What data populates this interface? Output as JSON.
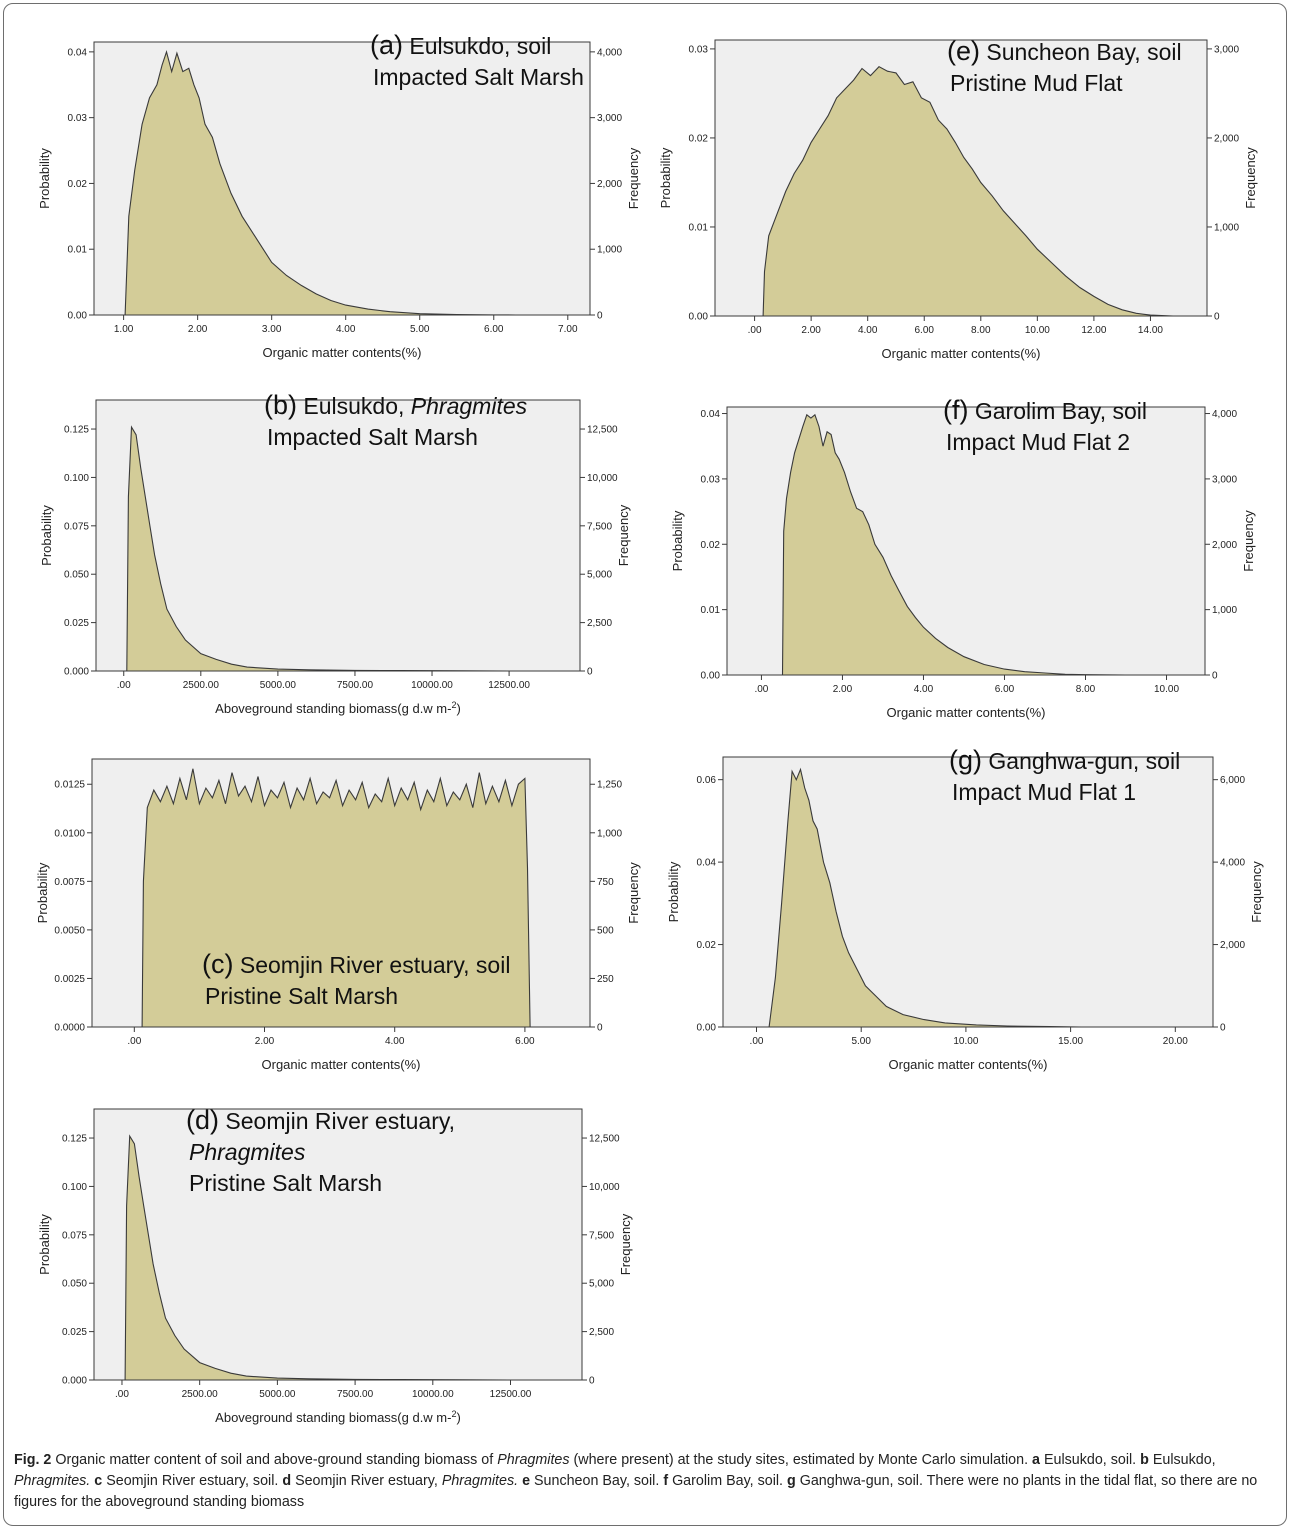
{
  "figure": {
    "caption": {
      "fig_label": "Fig. 2",
      "text": "Organic matter content of soil and above-ground standing biomass of",
      "italic_1": "Phragmites",
      "text_2": "(where present) at the study sites, estimated by Monte Carlo simulation.",
      "items": [
        {
          "letter": "a",
          "text": "Eulsukdo, soil."
        },
        {
          "letter": "b",
          "text": "Eulsukdo,",
          "italic": "Phragmites."
        },
        {
          "letter": "c",
          "text": "Seomjin River estuary, soil."
        },
        {
          "letter": "d",
          "text": "Seomjin River estuary,",
          "italic": "Phragmites."
        },
        {
          "letter": "e",
          "text": "Suncheon Bay, soil."
        },
        {
          "letter": "f",
          "text": "Garolim Bay, soil."
        },
        {
          "letter": "g",
          "text": "Ganghwa-gun, soil. There were no plants in the tidal flat, so there are no figures for the aboveground standing biomass"
        }
      ]
    }
  },
  "colors": {
    "fill": "#d3cc98",
    "line": "#3a3a3a",
    "plot_bg": "#efefef",
    "axis": "#3a3a3a"
  },
  "chart_data": [
    {
      "id": "a",
      "type": "area",
      "annotation": [
        [
          {
            "t": "(a)",
            "big": true
          },
          {
            "t": " Eulsukdo, soil"
          }
        ],
        [
          {
            "t": "Impacted Salt Marsh"
          }
        ]
      ],
      "xlabel": "Organic matter contents(%)",
      "xlabel_sup": "",
      "ylabel": "Probability",
      "y2label": "Frequency",
      "xlim": [
        0.6,
        7.3
      ],
      "ylim": [
        0,
        0.0415
      ],
      "xticks": [
        1,
        2,
        3,
        4,
        5,
        6,
        7
      ],
      "xtick_labels": [
        "1.00",
        "2.00",
        "3.00",
        "4.00",
        "5.00",
        "6.00",
        "7.00"
      ],
      "yticks": [
        0,
        0.01,
        0.02,
        0.03,
        0.04
      ],
      "ytick_labels": [
        "0.00",
        "0.01",
        "0.02",
        "0.03",
        "0.04"
      ],
      "y2ticks": [
        0,
        0.01,
        0.02,
        0.03,
        0.04
      ],
      "y2tick_labels": [
        "0",
        "1,000",
        "2,000",
        "3,000",
        "4,000"
      ],
      "x": [
        1.02,
        1.07,
        1.15,
        1.25,
        1.35,
        1.45,
        1.52,
        1.58,
        1.65,
        1.72,
        1.8,
        1.88,
        1.95,
        2.02,
        2.1,
        2.2,
        2.3,
        2.45,
        2.6,
        2.8,
        3.0,
        3.2,
        3.4,
        3.6,
        3.8,
        4.0,
        4.3,
        4.6,
        5.0,
        5.5,
        6.0,
        6.3
      ],
      "y": [
        0,
        0.015,
        0.022,
        0.029,
        0.033,
        0.035,
        0.038,
        0.04,
        0.037,
        0.0398,
        0.037,
        0.0375,
        0.035,
        0.033,
        0.029,
        0.027,
        0.023,
        0.0185,
        0.015,
        0.0115,
        0.008,
        0.006,
        0.0045,
        0.0032,
        0.0022,
        0.0015,
        0.0009,
        0.0005,
        0.0002,
        7e-05,
        2e-05,
        0
      ]
    },
    {
      "id": "b",
      "type": "area",
      "annotation": [
        [
          {
            "t": "(b)",
            "big": true
          },
          {
            "t": " Eulsukdo, "
          },
          {
            "t": "Phragmites",
            "it": true
          }
        ],
        [
          {
            "t": "Impacted Salt Marsh"
          }
        ]
      ],
      "xlabel": "Aboveground standing biomass(g d.w  m-",
      "xlabel_sup": "2",
      "ylabel": "Probability",
      "y2label": "Frequency",
      "xlim": [
        -900,
        14800
      ],
      "ylim": [
        0,
        0.14
      ],
      "xticks": [
        0,
        2500,
        5000,
        7500,
        10000,
        12500
      ],
      "xtick_labels": [
        ".00",
        "2500.00",
        "5000.00",
        "7500.00",
        "10000.00",
        "12500.00"
      ],
      "yticks": [
        0,
        0.025,
        0.05,
        0.075,
        0.1,
        0.125
      ],
      "ytick_labels": [
        "0.000",
        "0.025",
        "0.050",
        "0.075",
        "0.100",
        "0.125"
      ],
      "y2ticks": [
        0,
        0.025,
        0.05,
        0.075,
        0.1,
        0.125
      ],
      "y2tick_labels": [
        "0",
        "2,500",
        "5,000",
        "7,500",
        "10,000",
        "12,500"
      ],
      "x": [
        100,
        150,
        250,
        400,
        550,
        700,
        850,
        1000,
        1200,
        1400,
        1700,
        2000,
        2500,
        3000,
        3500,
        4000,
        5000,
        6000,
        7500,
        9000,
        11000,
        12500
      ],
      "y": [
        0,
        0.09,
        0.126,
        0.122,
        0.105,
        0.09,
        0.075,
        0.06,
        0.045,
        0.032,
        0.023,
        0.016,
        0.009,
        0.006,
        0.0035,
        0.002,
        0.001,
        0.0006,
        0.0003,
        0.0002,
        0.0001,
        0
      ]
    },
    {
      "id": "c",
      "type": "area",
      "annotation": [
        [
          {
            "t": "(c)",
            "big": true
          },
          {
            "t": " Seomjin River estuary, soil"
          }
        ],
        [
          {
            "t": "Pristine Salt Marsh"
          }
        ]
      ],
      "xlabel": "Organic matter contents(%)",
      "xlabel_sup": "",
      "ylabel": "Probability",
      "y2label": "Frequency",
      "xlim": [
        -0.65,
        7.0
      ],
      "ylim": [
        0,
        0.0138
      ],
      "xticks": [
        0,
        2,
        4,
        6
      ],
      "xtick_labels": [
        ".00",
        "2.00",
        "4.00",
        "6.00"
      ],
      "yticks": [
        0,
        0.0025,
        0.005,
        0.0075,
        0.01,
        0.0125
      ],
      "ytick_labels": [
        "0.0000",
        "0.0025",
        "0.0050",
        "0.0075",
        "0.0100",
        "0.0125"
      ],
      "y2ticks": [
        0,
        0.0025,
        0.005,
        0.0075,
        0.01,
        0.0125
      ],
      "y2tick_labels": [
        "0",
        "250",
        "500",
        "750",
        "1,000",
        "1,250"
      ],
      "x": [
        0.12,
        0.14,
        0.2,
        0.3,
        0.4,
        0.5,
        0.6,
        0.7,
        0.8,
        0.9,
        1.0,
        1.1,
        1.2,
        1.3,
        1.4,
        1.5,
        1.6,
        1.7,
        1.8,
        1.9,
        2.0,
        2.1,
        2.2,
        2.3,
        2.4,
        2.5,
        2.6,
        2.7,
        2.8,
        2.9,
        3.0,
        3.1,
        3.2,
        3.3,
        3.4,
        3.5,
        3.6,
        3.7,
        3.8,
        3.9,
        4.0,
        4.1,
        4.2,
        4.3,
        4.4,
        4.5,
        4.6,
        4.7,
        4.8,
        4.9,
        5.0,
        5.1,
        5.2,
        5.3,
        5.4,
        5.5,
        5.6,
        5.7,
        5.8,
        5.9,
        6.0,
        6.04,
        6.08
      ],
      "y": [
        0,
        0.0075,
        0.0113,
        0.0122,
        0.0116,
        0.0124,
        0.0115,
        0.0128,
        0.0117,
        0.0133,
        0.0115,
        0.0123,
        0.0118,
        0.0127,
        0.0115,
        0.0131,
        0.0119,
        0.0124,
        0.0116,
        0.0129,
        0.0114,
        0.0122,
        0.0118,
        0.0126,
        0.0113,
        0.0123,
        0.0117,
        0.0128,
        0.0115,
        0.0121,
        0.0118,
        0.0127,
        0.0114,
        0.0122,
        0.0117,
        0.0126,
        0.0113,
        0.012,
        0.0116,
        0.0128,
        0.0114,
        0.0123,
        0.0117,
        0.0126,
        0.0112,
        0.0122,
        0.0116,
        0.0128,
        0.0114,
        0.0121,
        0.0117,
        0.0125,
        0.0113,
        0.0131,
        0.0115,
        0.0124,
        0.0116,
        0.0127,
        0.0114,
        0.0125,
        0.0128,
        0.0082,
        0
      ]
    },
    {
      "id": "d",
      "type": "area",
      "annotation": [
        [
          {
            "t": "(d)",
            "big": true
          },
          {
            "t": " Seomjin River estuary,"
          }
        ],
        [
          {
            "t": "Phragmites",
            "it": true
          }
        ],
        [
          {
            "t": "Pristine Salt Marsh"
          }
        ]
      ],
      "xlabel": "Aboveground standing biomass(g d.w  m-",
      "xlabel_sup": "2",
      "ylabel": "Probability",
      "y2label": "Frequency",
      "xlim": [
        -900,
        14800
      ],
      "ylim": [
        0,
        0.14
      ],
      "xticks": [
        0,
        2500,
        5000,
        7500,
        10000,
        12500
      ],
      "xtick_labels": [
        ".00",
        "2500.00",
        "5000.00",
        "7500.00",
        "10000.00",
        "12500.00"
      ],
      "yticks": [
        0,
        0.025,
        0.05,
        0.075,
        0.1,
        0.125
      ],
      "ytick_labels": [
        "0.000",
        "0.025",
        "0.050",
        "0.075",
        "0.100",
        "0.125"
      ],
      "y2ticks": [
        0,
        0.025,
        0.05,
        0.075,
        0.1,
        0.125
      ],
      "y2tick_labels": [
        "0",
        "2,500",
        "5,000",
        "7,500",
        "10,000",
        "12,500"
      ],
      "x": [
        100,
        150,
        250,
        400,
        550,
        700,
        850,
        1000,
        1200,
        1400,
        1700,
        2000,
        2500,
        3000,
        3500,
        4000,
        5000,
        6000,
        7500,
        9000,
        11000,
        12500
      ],
      "y": [
        0,
        0.09,
        0.126,
        0.122,
        0.105,
        0.09,
        0.075,
        0.06,
        0.045,
        0.032,
        0.023,
        0.016,
        0.009,
        0.006,
        0.0035,
        0.002,
        0.001,
        0.0006,
        0.0003,
        0.0002,
        0.0001,
        0
      ]
    },
    {
      "id": "e",
      "type": "area",
      "annotation": [
        [
          {
            "t": "(e)",
            "big": true
          },
          {
            "t": " Suncheon Bay, soil"
          }
        ],
        [
          {
            "t": "Pristine Mud Flat"
          }
        ]
      ],
      "xlabel": "Organic matter contents(%)",
      "xlabel_sup": "",
      "ylabel": "Probability",
      "y2label": "Frequency",
      "xlim": [
        -1.4,
        16.0
      ],
      "ylim": [
        0,
        0.031
      ],
      "xticks": [
        0,
        2,
        4,
        6,
        8,
        10,
        12,
        14
      ],
      "xtick_labels": [
        ".00",
        "2.00",
        "4.00",
        "6.00",
        "8.00",
        "10.00",
        "12.00",
        "14.00"
      ],
      "yticks": [
        0,
        0.01,
        0.02,
        0.03
      ],
      "ytick_labels": [
        "0.00",
        "0.01",
        "0.02",
        "0.03"
      ],
      "y2ticks": [
        0,
        0.01,
        0.02,
        0.03
      ],
      "y2tick_labels": [
        "0",
        "1,000",
        "2,000",
        "3,000"
      ],
      "x": [
        0.3,
        0.35,
        0.5,
        0.8,
        1.1,
        1.4,
        1.7,
        2.0,
        2.3,
        2.6,
        2.9,
        3.2,
        3.5,
        3.8,
        4.1,
        4.4,
        4.7,
        5.0,
        5.3,
        5.6,
        5.9,
        6.2,
        6.5,
        6.8,
        7.1,
        7.4,
        7.7,
        8.0,
        8.4,
        8.8,
        9.2,
        9.6,
        10.0,
        10.5,
        11.0,
        11.5,
        12.0,
        12.5,
        13.0,
        13.5,
        14.0,
        14.5,
        14.8
      ],
      "y": [
        0,
        0.005,
        0.009,
        0.0115,
        0.014,
        0.016,
        0.0175,
        0.0195,
        0.021,
        0.0225,
        0.0245,
        0.0255,
        0.0265,
        0.0278,
        0.027,
        0.028,
        0.0275,
        0.0273,
        0.026,
        0.0263,
        0.0245,
        0.024,
        0.022,
        0.021,
        0.0195,
        0.0178,
        0.0165,
        0.015,
        0.0135,
        0.0118,
        0.0104,
        0.009,
        0.0075,
        0.006,
        0.0045,
        0.0032,
        0.0022,
        0.0013,
        0.0007,
        0.0003,
        0.0001,
        3e-05,
        0
      ]
    },
    {
      "id": "f",
      "type": "area",
      "annotation": [
        [
          {
            "t": "(f)",
            "big": true
          },
          {
            "t": " Garolim Bay, soil"
          }
        ],
        [
          {
            "t": "Impact Mud Flat 2"
          }
        ]
      ],
      "xlabel": "Organic matter contents(%)",
      "xlabel_sup": "",
      "ylabel": "Probability",
      "y2label": "Frequency",
      "xlim": [
        -0.85,
        10.95
      ],
      "ylim": [
        0,
        0.041
      ],
      "xticks": [
        0,
        2,
        4,
        6,
        8,
        10
      ],
      "xtick_labels": [
        ".00",
        "2.00",
        "4.00",
        "6.00",
        "8.00",
        "10.00"
      ],
      "yticks": [
        0,
        0.01,
        0.02,
        0.03,
        0.04
      ],
      "ytick_labels": [
        "0.00",
        "0.01",
        "0.02",
        "0.03",
        "0.04"
      ],
      "y2ticks": [
        0,
        0.01,
        0.02,
        0.03,
        0.04
      ],
      "y2tick_labels": [
        "0",
        "1,000",
        "2,000",
        "3,000",
        "4,000"
      ],
      "x": [
        0.52,
        0.55,
        0.62,
        0.72,
        0.82,
        0.92,
        1.02,
        1.12,
        1.22,
        1.32,
        1.42,
        1.52,
        1.62,
        1.72,
        1.82,
        1.92,
        2.05,
        2.2,
        2.35,
        2.5,
        2.65,
        2.8,
        3.0,
        3.2,
        3.4,
        3.6,
        3.8,
        4.0,
        4.3,
        4.6,
        5.0,
        5.5,
        6.0,
        6.5,
        7.0,
        7.5,
        8.0,
        9.0
      ],
      "y": [
        0,
        0.022,
        0.027,
        0.031,
        0.034,
        0.036,
        0.038,
        0.0398,
        0.0393,
        0.0398,
        0.038,
        0.035,
        0.0372,
        0.0368,
        0.034,
        0.033,
        0.031,
        0.028,
        0.0255,
        0.025,
        0.023,
        0.02,
        0.018,
        0.0152,
        0.0128,
        0.0105,
        0.0088,
        0.0073,
        0.0056,
        0.0042,
        0.0028,
        0.0016,
        0.0009,
        0.0005,
        0.0003,
        0.0001,
        4e-05,
        0
      ]
    },
    {
      "id": "g",
      "type": "area",
      "annotation": [
        [
          {
            "t": "(g)",
            "big": true
          },
          {
            "t": " Ganghwa-gun, soil"
          }
        ],
        [
          {
            "t": "Impact Mud Flat 1"
          }
        ]
      ],
      "xlabel": "Organic matter contents(%)",
      "xlabel_sup": "",
      "ylabel": "Probability",
      "y2label": "Frequency",
      "xlim": [
        -1.6,
        21.8
      ],
      "ylim": [
        0,
        0.0655
      ],
      "xticks": [
        0,
        5,
        10,
        15,
        20
      ],
      "xtick_labels": [
        ".00",
        "5.00",
        "10.00",
        "15.00",
        "20.00"
      ],
      "yticks": [
        0,
        0.02,
        0.04,
        0.06
      ],
      "ytick_labels": [
        "0.00",
        "0.02",
        "0.04",
        "0.06"
      ],
      "y2ticks": [
        0,
        0.02,
        0.04,
        0.06
      ],
      "y2tick_labels": [
        "0",
        "2,000",
        "4,000",
        "6,000"
      ],
      "x": [
        0.6,
        0.9,
        1.2,
        1.5,
        1.7,
        1.9,
        2.1,
        2.3,
        2.5,
        2.7,
        2.9,
        3.2,
        3.5,
        3.8,
        4.1,
        4.4,
        4.8,
        5.2,
        5.7,
        6.2,
        7.0,
        8.0,
        9.0,
        10.5,
        12.0,
        14.0,
        15.5
      ],
      "y": [
        0,
        0.012,
        0.03,
        0.05,
        0.062,
        0.06,
        0.0625,
        0.058,
        0.055,
        0.05,
        0.048,
        0.04,
        0.035,
        0.028,
        0.022,
        0.018,
        0.014,
        0.01,
        0.0075,
        0.005,
        0.003,
        0.0018,
        0.001,
        0.0005,
        0.00025,
        0.0001,
        0
      ]
    }
  ]
}
